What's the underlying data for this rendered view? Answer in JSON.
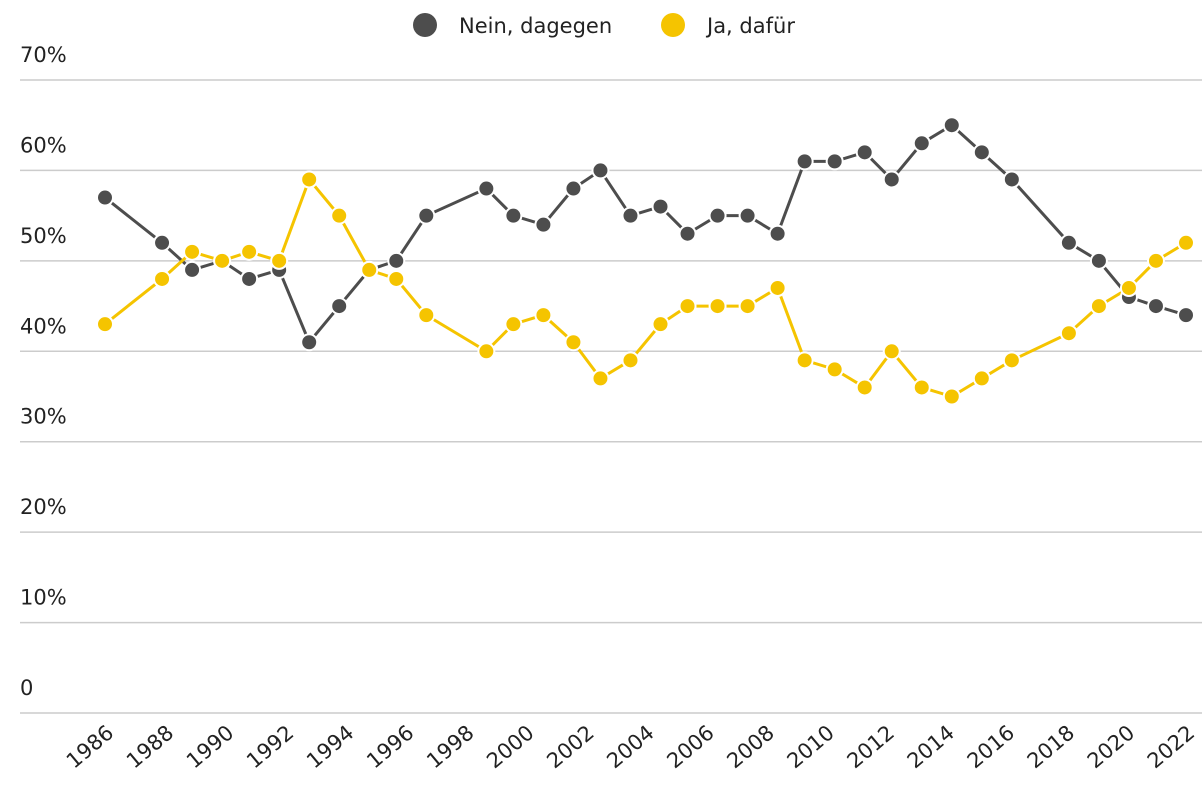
{
  "chart_data": {
    "type": "line",
    "x": [
      1986.0,
      1987.9,
      1988.9,
      1989.9,
      1990.8,
      1991.8,
      1992.8,
      1993.8,
      1994.8,
      1995.7,
      1996.7,
      1998.7,
      1999.6,
      2000.6,
      2001.6,
      2002.5,
      2003.5,
      2004.5,
      2005.4,
      2006.4,
      2007.4,
      2008.4,
      2009.3,
      2010.3,
      2011.3,
      2012.2,
      2013.2,
      2014.2,
      2015.2,
      2016.2,
      2018.1,
      2019.1,
      2020.1,
      2021.0,
      2022.0
    ],
    "series": [
      {
        "name": "Nein, dagegen",
        "color": "#4d4d4d",
        "values": [
          57,
          52,
          49,
          50,
          48,
          49,
          41,
          45,
          49,
          50,
          55,
          58,
          55,
          54,
          58,
          60,
          55,
          56,
          53,
          55,
          55,
          53,
          61,
          61,
          62,
          59,
          63,
          65,
          62,
          59,
          52,
          50,
          46,
          45,
          44
        ]
      },
      {
        "name": "Ja, dafür",
        "color": "#f5c400",
        "values": [
          43,
          48,
          51,
          50,
          51,
          50,
          59,
          55,
          49,
          48,
          44,
          40,
          43,
          44,
          41,
          37,
          39,
          43,
          45,
          45,
          45,
          47,
          39,
          38,
          36,
          40,
          36,
          35,
          37,
          39,
          42,
          45,
          47,
          50,
          52
        ]
      }
    ],
    "xlim": [
      1986,
      2022
    ],
    "xticks": [
      1986,
      1988,
      1990,
      1992,
      1994,
      1996,
      1998,
      2000,
      2002,
      2004,
      2006,
      2008,
      2010,
      2012,
      2014,
      2016,
      2018,
      2020,
      2022
    ],
    "ylim": [
      0,
      70
    ],
    "yticks": [
      0,
      {
        "value": 10,
        "label": "10%"
      },
      {
        "value": 20,
        "label": "20%"
      },
      {
        "value": 30,
        "label": "30%"
      },
      {
        "value": 40,
        "label": "40%"
      },
      {
        "value": 50,
        "label": "50%"
      },
      {
        "value": 60,
        "label": "60%"
      },
      {
        "value": 70,
        "label": "70%"
      }
    ],
    "grid": true,
    "legend": "top"
  }
}
